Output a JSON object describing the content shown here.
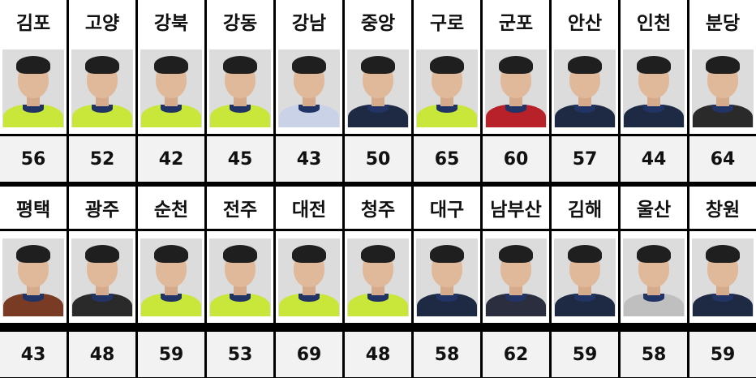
{
  "rows": [
    {
      "people": [
        {
          "region": "김포",
          "age": "56"
        },
        {
          "region": "고양",
          "age": "52"
        },
        {
          "region": "강북",
          "age": "42"
        },
        {
          "region": "강동",
          "age": "45"
        },
        {
          "region": "강남",
          "age": "43"
        },
        {
          "region": "중앙",
          "age": "50"
        },
        {
          "region": "구로",
          "age": "65"
        },
        {
          "region": "군포",
          "age": "60"
        },
        {
          "region": "안산",
          "age": "57"
        },
        {
          "region": "인천",
          "age": "44"
        },
        {
          "region": "분당",
          "age": "64"
        }
      ]
    },
    {
      "people": [
        {
          "region": "평택",
          "age": "43"
        },
        {
          "region": "광주",
          "age": "48"
        },
        {
          "region": "순천",
          "age": "59"
        },
        {
          "region": "전주",
          "age": "53"
        },
        {
          "region": "대전",
          "age": "69"
        },
        {
          "region": "청주",
          "age": "48"
        },
        {
          "region": "대구",
          "age": "58"
        },
        {
          "region": "남부산",
          "age": "62"
        },
        {
          "region": "김해",
          "age": "59"
        },
        {
          "region": "울산",
          "age": "58"
        },
        {
          "region": "창원",
          "age": "59"
        }
      ]
    }
  ],
  "photo_styles": [
    [
      "#c9e63a",
      "#c9e63a",
      "#c9e63a",
      "#c9e63a",
      "#c9d2e6",
      "#1e2a44",
      "#c9e63a",
      "#b8202a",
      "#1e2a44",
      "#1e2a44",
      "#2a2a2a"
    ],
    [
      "#7a3b25",
      "#2a2a2a",
      "#c9e63a",
      "#c9e63a",
      "#c9e63a",
      "#c9e63a",
      "#1e2a44",
      "#2a2e3e",
      "#1e2a44",
      "#bfbfbf",
      "#1e2a44"
    ]
  ]
}
